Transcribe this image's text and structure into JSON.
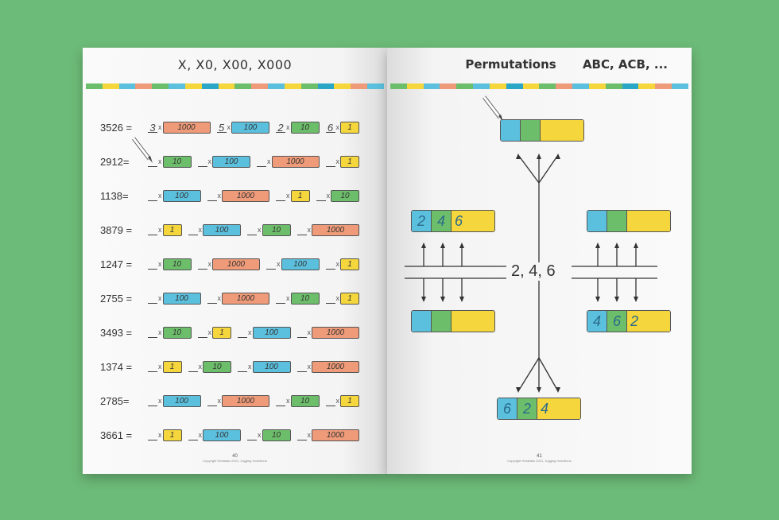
{
  "left_page": {
    "title": "X, X0, X00, X000",
    "page_number": "40",
    "copyright": "Copyright Hesteaks 2021, Jugging Inventions",
    "rows": [
      {
        "label": "3526 =",
        "blocks": [
          {
            "digit": "3",
            "value": "1000",
            "color": "orange"
          },
          {
            "digit": "5",
            "value": "100",
            "color": "blue"
          },
          {
            "digit": "2",
            "value": "10",
            "color": "green"
          },
          {
            "digit": "6",
            "value": "1",
            "color": "yellow"
          }
        ]
      },
      {
        "label": "2912=",
        "blocks": [
          {
            "digit": "",
            "value": "10",
            "color": "green"
          },
          {
            "digit": "",
            "value": "100",
            "color": "blue"
          },
          {
            "digit": "",
            "value": "1000",
            "color": "orange"
          },
          {
            "digit": "",
            "value": "1",
            "color": "yellow"
          }
        ]
      },
      {
        "label": "1138=",
        "blocks": [
          {
            "digit": "",
            "value": "100",
            "color": "blue"
          },
          {
            "digit": "",
            "value": "1000",
            "color": "orange"
          },
          {
            "digit": "",
            "value": "1",
            "color": "yellow"
          },
          {
            "digit": "",
            "value": "10",
            "color": "green"
          }
        ]
      },
      {
        "label": "3879 =",
        "blocks": [
          {
            "digit": "",
            "value": "1",
            "color": "yellow"
          },
          {
            "digit": "",
            "value": "100",
            "color": "blue"
          },
          {
            "digit": "",
            "value": "10",
            "color": "green"
          },
          {
            "digit": "",
            "value": "1000",
            "color": "orange"
          }
        ]
      },
      {
        "label": "1247 =",
        "blocks": [
          {
            "digit": "",
            "value": "10",
            "color": "green"
          },
          {
            "digit": "",
            "value": "1000",
            "color": "orange"
          },
          {
            "digit": "",
            "value": "100",
            "color": "blue"
          },
          {
            "digit": "",
            "value": "1",
            "color": "yellow"
          }
        ]
      },
      {
        "label": "2755 =",
        "blocks": [
          {
            "digit": "",
            "value": "100",
            "color": "blue"
          },
          {
            "digit": "",
            "value": "1000",
            "color": "orange"
          },
          {
            "digit": "",
            "value": "10",
            "color": "green"
          },
          {
            "digit": "",
            "value": "1",
            "color": "yellow"
          }
        ]
      },
      {
        "label": "3493 =",
        "blocks": [
          {
            "digit": "",
            "value": "10",
            "color": "green"
          },
          {
            "digit": "",
            "value": "1",
            "color": "yellow"
          },
          {
            "digit": "",
            "value": "100",
            "color": "blue"
          },
          {
            "digit": "",
            "value": "1000",
            "color": "orange"
          }
        ]
      },
      {
        "label": "1374 =",
        "blocks": [
          {
            "digit": "",
            "value": "1",
            "color": "yellow"
          },
          {
            "digit": "",
            "value": "10",
            "color": "green"
          },
          {
            "digit": "",
            "value": "100",
            "color": "blue"
          },
          {
            "digit": "",
            "value": "1000",
            "color": "orange"
          }
        ]
      },
      {
        "label": "2785=",
        "blocks": [
          {
            "digit": "",
            "value": "100",
            "color": "blue"
          },
          {
            "digit": "",
            "value": "1000",
            "color": "orange"
          },
          {
            "digit": "",
            "value": "10",
            "color": "green"
          },
          {
            "digit": "",
            "value": "1",
            "color": "yellow"
          }
        ]
      },
      {
        "label": "3661 =",
        "blocks": [
          {
            "digit": "",
            "value": "1",
            "color": "yellow"
          },
          {
            "digit": "",
            "value": "100",
            "color": "blue"
          },
          {
            "digit": "",
            "value": "10",
            "color": "green"
          },
          {
            "digit": "",
            "value": "1000",
            "color": "orange"
          }
        ]
      }
    ]
  },
  "right_page": {
    "title": "Permutations",
    "subtitle": "ABC, ACB, ...",
    "page_number": "41",
    "copyright": "Copyright Hesteaks 2021, Jugging Inventions",
    "center_label": "2, 4, 6",
    "tiles": {
      "top": [
        "",
        "",
        ""
      ],
      "left_upper": [
        "2",
        "4",
        "6"
      ],
      "right_upper": [
        "",
        "",
        ""
      ],
      "left_lower": [
        "",
        "",
        ""
      ],
      "right_lower": [
        "4",
        "6",
        "2"
      ],
      "bottom": [
        "6",
        "2",
        "4"
      ]
    }
  },
  "colors": {
    "background": "#6dbb78",
    "green": "#6dbe6a",
    "blue": "#5bc0de",
    "orange": "#ef9a78",
    "yellow": "#f5d63d"
  }
}
